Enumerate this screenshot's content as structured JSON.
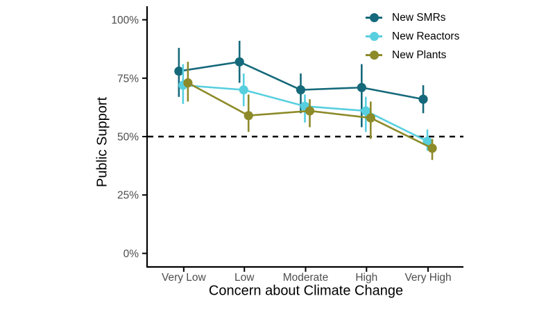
{
  "page": {
    "background_color": "#ffffff",
    "text_color": "#000000",
    "tick_label_color": "#4d4d4d",
    "axis_line_color": "#000000"
  },
  "chart_data": {
    "type": "line",
    "title": "",
    "xlabel": "Concern about Climate Change",
    "ylabel": "Public Support",
    "categories": [
      "Very Low",
      "Low",
      "Moderate",
      "High",
      "Very High"
    ],
    "y_ticks": [
      {
        "value": 0,
        "label": "0%"
      },
      {
        "value": 25,
        "label": "25%"
      },
      {
        "value": 50,
        "label": "50%"
      },
      {
        "value": 75,
        "label": "75%"
      },
      {
        "value": 100,
        "label": "100%"
      }
    ],
    "ylim": [
      -5.5,
      105.5
    ],
    "grid": false,
    "legend_position": "top-right-inside",
    "reference_line": {
      "value": 50,
      "style": "dashed",
      "color": "#000000"
    },
    "series": [
      {
        "name": "New SMRs",
        "color": "#15697a",
        "values": [
          78,
          82,
          70,
          71,
          66
        ],
        "ci_low": [
          67,
          73,
          60,
          54,
          60
        ],
        "ci_high": [
          88,
          91,
          77,
          81,
          72
        ]
      },
      {
        "name": "New Reactors",
        "color": "#57cfdf",
        "values": [
          72,
          70,
          63,
          61,
          48
        ],
        "ci_low": [
          64,
          63,
          56,
          52,
          44
        ],
        "ci_high": [
          81,
          77,
          68,
          67,
          53
        ]
      },
      {
        "name": "New Plants",
        "color": "#8d8a29",
        "values": [
          73,
          59,
          61,
          58,
          45
        ],
        "ci_low": [
          65,
          52,
          54,
          49,
          40
        ],
        "ci_high": [
          82,
          68,
          66,
          65,
          49
        ]
      }
    ]
  }
}
